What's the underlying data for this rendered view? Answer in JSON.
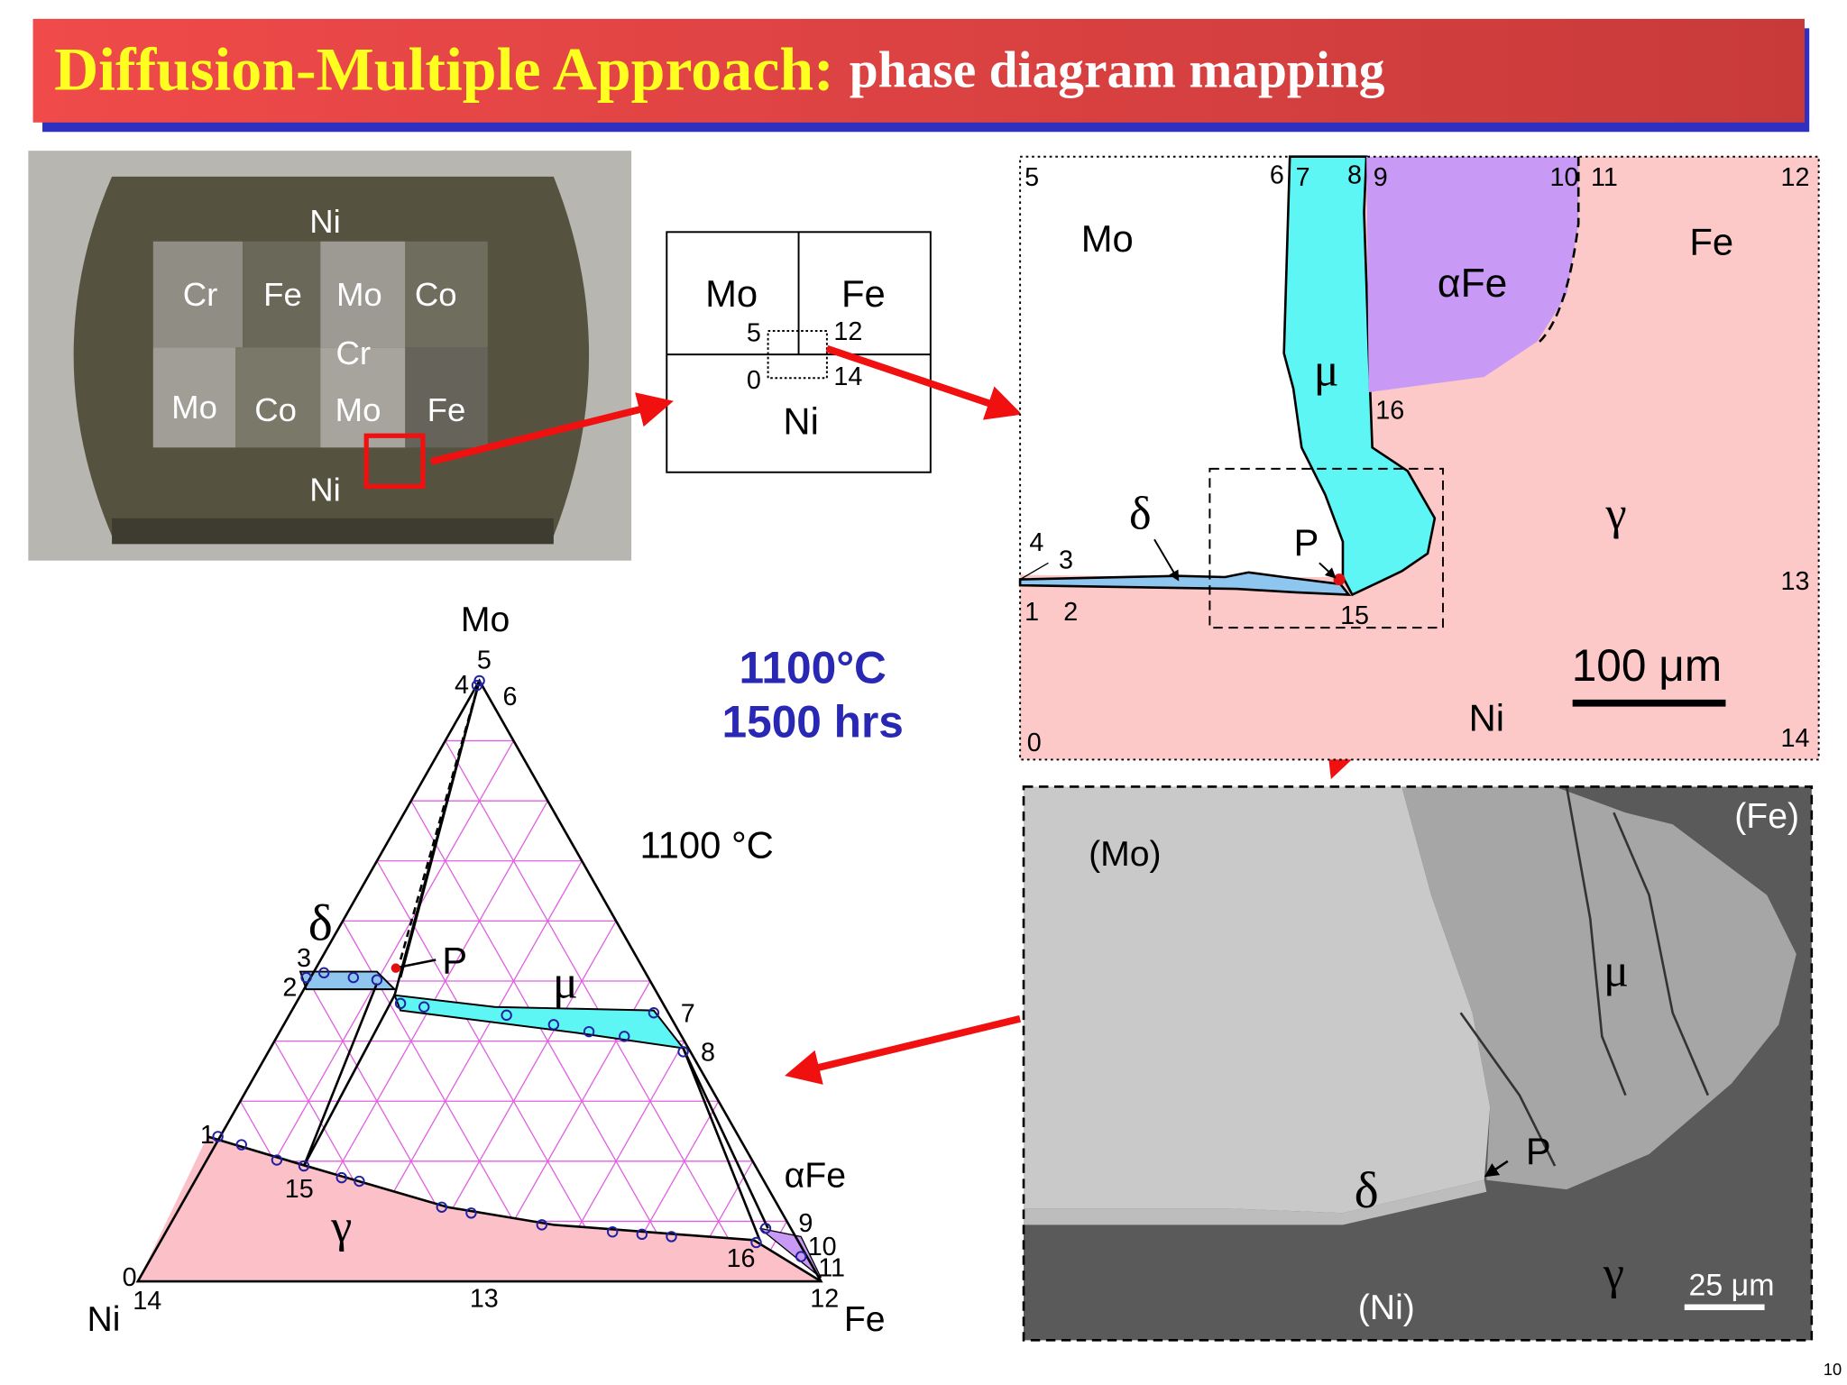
{
  "title": {
    "main": "Diffusion-Multiple Approach:",
    "sub": "phase diagram mapping"
  },
  "sample_photo": {
    "labels": [
      "Ni",
      "Cr",
      "Fe",
      "Mo",
      "Co",
      "Cr",
      "Mo",
      "Co",
      "Mo",
      "Fe",
      "Ni"
    ]
  },
  "schematic": {
    "labels": [
      "Mo",
      "Fe",
      "Ni"
    ],
    "corners": [
      5,
      12,
      0,
      14
    ]
  },
  "map": {
    "points": [
      5,
      6,
      7,
      8,
      9,
      10,
      11,
      12,
      16,
      4,
      3,
      13,
      1,
      2,
      15,
      0,
      14
    ],
    "phases": [
      "Mo",
      "Fe",
      "αFe",
      "μ",
      "δ",
      "P",
      "γ",
      "Ni"
    ],
    "scale_bar": "100 μm"
  },
  "conditions": {
    "temperature": "1100°C",
    "time": "1500 hrs"
  },
  "ternary": {
    "vertices": [
      "Mo",
      "Ni",
      "Fe"
    ],
    "temperature": "1100 °C",
    "phases": [
      "δ",
      "μ",
      "P",
      "αFe",
      "γ"
    ],
    "points": [
      5,
      4,
      6,
      3,
      2,
      7,
      8,
      1,
      15,
      9,
      10,
      16,
      11,
      0,
      14,
      13,
      12
    ]
  },
  "sem": {
    "labels": [
      "(Mo)",
      "(Fe)",
      "μ",
      "P",
      "δ",
      "γ",
      "(Ni)"
    ],
    "scale_bar": "25 μm"
  },
  "page_number": 10
}
